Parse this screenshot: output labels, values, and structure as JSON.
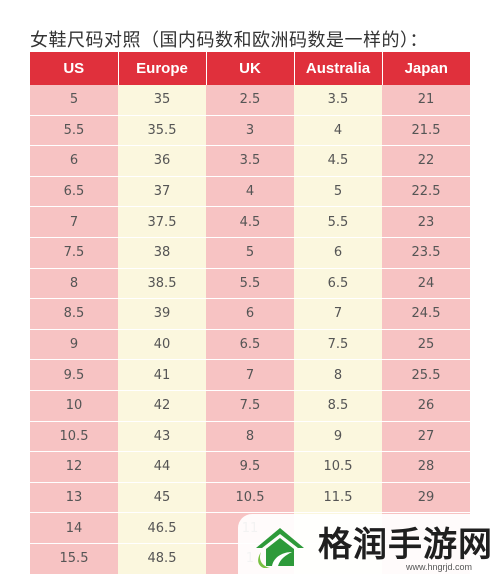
{
  "title": "女鞋尺码对照（国内码数和欧洲码数是一样的）：",
  "table": {
    "headers": [
      "US",
      "Europe",
      "UK",
      "Australia",
      "Japan"
    ],
    "rows": [
      [
        "5",
        "35",
        "2.5",
        "3.5",
        "21"
      ],
      [
        "5.5",
        "35.5",
        "3",
        "4",
        "21.5"
      ],
      [
        "6",
        "36",
        "3.5",
        "4.5",
        "22"
      ],
      [
        "6.5",
        "37",
        "4",
        "5",
        "22.5"
      ],
      [
        "7",
        "37.5",
        "4.5",
        "5.5",
        "23"
      ],
      [
        "7.5",
        "38",
        "5",
        "6",
        "23.5"
      ],
      [
        "8",
        "38.5",
        "5.5",
        "6.5",
        "24"
      ],
      [
        "8.5",
        "39",
        "6",
        "7",
        "24.5"
      ],
      [
        "9",
        "40",
        "6.5",
        "7.5",
        "25"
      ],
      [
        "9.5",
        "41",
        "7",
        "8",
        "25.5"
      ],
      [
        "10",
        "42",
        "7.5",
        "8.5",
        "26"
      ],
      [
        "10.5",
        "43",
        "8",
        "9",
        "27"
      ],
      [
        "12",
        "44",
        "9.5",
        "10.5",
        "28"
      ],
      [
        "13",
        "45",
        "10.5",
        "11.5",
        "29"
      ],
      [
        "14",
        "46.5",
        "11",
        "",
        ""
      ],
      [
        "15.5",
        "48.5",
        "1",
        "",
        ""
      ]
    ]
  },
  "watermark": {
    "brand": "格润手游网",
    "url": "www.hngrjd.com"
  },
  "colors": {
    "header": "#e0303c",
    "pink_column": "#f7c3c3",
    "cream_column": "#fbf7de",
    "logo_green": "#2e9a3a"
  }
}
